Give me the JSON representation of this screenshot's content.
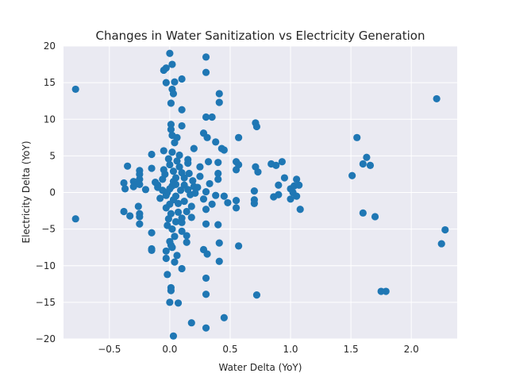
{
  "chart_data": {
    "type": "scatter",
    "title": "Changes in Water Sanitization vs Electricity Generation",
    "xlabel": "Water Delta (YoY)",
    "ylabel": "Electricity Delta (YoY)",
    "xlim": [
      -0.88,
      2.38
    ],
    "ylim": [
      -20,
      20
    ],
    "xticks": [
      -0.5,
      0.0,
      0.5,
      1.0,
      1.5,
      2.0
    ],
    "xtick_labels": [
      "−0.5",
      "0.0",
      "0.5",
      "1.0",
      "1.5",
      "2.0"
    ],
    "yticks": [
      -20,
      -15,
      -10,
      -5,
      0,
      5,
      10,
      15,
      20
    ],
    "ytick_labels": [
      "−20",
      "−15",
      "−10",
      "−5",
      "0",
      "5",
      "10",
      "15",
      "20"
    ],
    "grid": true,
    "colors": {
      "marker": "#1f77b4",
      "plot_bg": "#eaeaf2",
      "grid": "#ffffff"
    },
    "points": [
      [
        -0.78,
        14.1
      ],
      [
        -0.78,
        -3.6
      ],
      [
        2.21,
        12.8
      ],
      [
        2.28,
        -5.1
      ],
      [
        2.25,
        -7.0
      ],
      [
        1.55,
        7.5
      ],
      [
        1.6,
        3.9
      ],
      [
        1.63,
        4.8
      ],
      [
        1.66,
        3.7
      ],
      [
        1.51,
        2.3
      ],
      [
        1.6,
        -2.8
      ],
      [
        1.7,
        -3.3
      ],
      [
        1.75,
        -13.5
      ],
      [
        1.79,
        -13.5
      ],
      [
        -0.05,
        16.7
      ],
      [
        0.0,
        19.0
      ],
      [
        0.02,
        17.5
      ],
      [
        -0.03,
        17.0
      ],
      [
        -0.03,
        15.0
      ],
      [
        0.04,
        15.1
      ],
      [
        0.1,
        15.5
      ],
      [
        0.3,
        18.5
      ],
      [
        0.3,
        16.4
      ],
      [
        0.41,
        13.5
      ],
      [
        0.41,
        12.3
      ],
      [
        0.02,
        14.1
      ],
      [
        0.03,
        13.5
      ],
      [
        0.01,
        12.2
      ],
      [
        0.1,
        11.3
      ],
      [
        0.3,
        10.3
      ],
      [
        0.35,
        10.3
      ],
      [
        0.71,
        9.5
      ],
      [
        0.72,
        9.0
      ],
      [
        0.01,
        9.3
      ],
      [
        0.01,
        8.6
      ],
      [
        0.02,
        7.8
      ],
      [
        0.1,
        9.1
      ],
      [
        0.28,
        8.1
      ],
      [
        0.31,
        7.5
      ],
      [
        0.38,
        6.9
      ],
      [
        0.57,
        7.5
      ],
      [
        0.43,
        6.0
      ],
      [
        0.45,
        5.8
      ],
      [
        0.2,
        6.0
      ],
      [
        -0.15,
        5.2
      ],
      [
        -0.05,
        5.7
      ],
      [
        -0.35,
        3.6
      ],
      [
        -0.25,
        3.0
      ],
      [
        -0.25,
        2.5
      ],
      [
        -0.25,
        1.8
      ],
      [
        -0.3,
        1.5
      ],
      [
        -0.38,
        1.3
      ],
      [
        -0.37,
        0.5
      ],
      [
        -0.3,
        0.8
      ],
      [
        -0.25,
        1.1
      ],
      [
        -0.15,
        3.3
      ],
      [
        -0.1,
        1.0
      ],
      [
        -0.06,
        0.3
      ],
      [
        0.55,
        4.2
      ],
      [
        0.55,
        3.1
      ],
      [
        0.57,
        3.8
      ],
      [
        0.71,
        3.5
      ],
      [
        0.73,
        2.8
      ],
      [
        0.84,
        3.9
      ],
      [
        0.88,
        3.7
      ],
      [
        0.9,
        1.0
      ],
      [
        0.93,
        4.2
      ],
      [
        0.95,
        2.0
      ],
      [
        1.0,
        0.5
      ],
      [
        1.03,
        0.9
      ],
      [
        1.05,
        1.8
      ],
      [
        1.07,
        1.0
      ],
      [
        1.02,
        0.0
      ],
      [
        1.0,
        -0.9
      ],
      [
        1.05,
        -0.5
      ],
      [
        1.08,
        -2.3
      ],
      [
        0.86,
        -0.6
      ],
      [
        0.9,
        -0.3
      ],
      [
        0.7,
        0.2
      ],
      [
        0.7,
        -1.0
      ],
      [
        0.7,
        -1.5
      ],
      [
        0.55,
        -1.1
      ],
      [
        0.55,
        -2.1
      ],
      [
        0.57,
        -7.3
      ],
      [
        0.72,
        -14.0
      ],
      [
        0.45,
        -17.1
      ],
      [
        0.3,
        -18.5
      ],
      [
        0.18,
        -17.8
      ],
      [
        0.03,
        -19.6
      ],
      [
        0.07,
        -15.1
      ],
      [
        0.0,
        -15.0
      ],
      [
        0.01,
        -13.0
      ],
      [
        0.01,
        -13.4
      ],
      [
        0.3,
        -13.9
      ],
      [
        0.3,
        -11.7
      ],
      [
        -0.02,
        -11.2
      ],
      [
        0.1,
        -10.4
      ],
      [
        0.28,
        -7.8
      ],
      [
        0.31,
        -8.4
      ],
      [
        0.41,
        -9.4
      ],
      [
        0.41,
        -6.9
      ],
      [
        0.04,
        -9.5
      ],
      [
        -0.03,
        -9.0
      ],
      [
        -0.03,
        -8.0
      ],
      [
        0.01,
        -7.2
      ],
      [
        -0.15,
        -7.7
      ],
      [
        -0.15,
        -7.9
      ],
      [
        -0.15,
        -5.5
      ],
      [
        -0.25,
        -4.3
      ],
      [
        -0.25,
        -3.3
      ],
      [
        -0.25,
        -2.9
      ],
      [
        -0.38,
        -2.6
      ],
      [
        -0.33,
        -3.2
      ],
      [
        -0.26,
        -1.9
      ],
      [
        0.14,
        -6.8
      ],
      [
        0.14,
        -5.9
      ],
      [
        0.1,
        -5.3
      ],
      [
        0.18,
        -3.4
      ],
      [
        0.3,
        -4.3
      ],
      [
        0.4,
        -4.4
      ],
      [
        0.3,
        -2.3
      ],
      [
        0.48,
        -1.4
      ],
      [
        0.45,
        -0.5
      ],
      [
        0.2,
        0.8
      ],
      [
        0.25,
        2.2
      ],
      [
        0.4,
        2.6
      ],
      [
        0.4,
        1.8
      ],
      [
        0.4,
        4.1
      ],
      [
        0.32,
        4.2
      ],
      [
        0.25,
        3.5
      ],
      [
        0.15,
        4.5
      ],
      [
        0.15,
        4.0
      ],
      [
        0.06,
        4.3
      ],
      [
        0.08,
        3.5
      ],
      [
        0.1,
        2.7
      ],
      [
        0.05,
        2.0
      ],
      [
        0.03,
        1.5
      ],
      [
        0.02,
        0.9
      ],
      [
        0.0,
        0.5
      ],
      [
        -0.02,
        0.0
      ],
      [
        0.05,
        -0.5
      ],
      [
        0.03,
        -1.0
      ],
      [
        0.0,
        -1.6
      ],
      [
        -0.03,
        -2.1
      ],
      [
        0.07,
        -2.7
      ],
      [
        0.1,
        -3.5
      ],
      [
        0.05,
        -4.0
      ],
      [
        -0.02,
        -4.5
      ],
      [
        0.04,
        -6.0
      ],
      [
        0.02,
        -5.0
      ],
      [
        0.12,
        1.0
      ],
      [
        0.15,
        0.4
      ],
      [
        0.17,
        -0.3
      ],
      [
        0.12,
        -1.2
      ],
      [
        0.18,
        -1.9
      ],
      [
        0.21,
        -0.1
      ],
      [
        0.23,
        0.7
      ],
      [
        -0.04,
        2.5
      ],
      [
        -0.05,
        3.1
      ],
      [
        0.0,
        3.8
      ],
      [
        -0.01,
        4.6
      ],
      [
        0.02,
        5.5
      ],
      [
        0.08,
        5.1
      ],
      [
        0.04,
        6.8
      ],
      [
        0.06,
        7.5
      ],
      [
        -0.08,
        -0.8
      ],
      [
        -0.1,
        0.7
      ],
      [
        -0.12,
        1.4
      ],
      [
        -0.2,
        0.4
      ],
      [
        0.28,
        -0.9
      ],
      [
        0.3,
        0.1
      ],
      [
        0.33,
        1.2
      ],
      [
        0.35,
        -1.6
      ],
      [
        0.38,
        -0.4
      ],
      [
        0.05,
        1.1
      ],
      [
        0.07,
        -1.5
      ],
      [
        0.1,
        -4.1
      ],
      [
        0.14,
        -2.6
      ],
      [
        0.01,
        -2.9
      ],
      [
        -0.01,
        -3.6
      ],
      [
        0.03,
        2.9
      ],
      [
        0.09,
        0.3
      ],
      [
        0.12,
        2.0
      ],
      [
        0.16,
        2.6
      ],
      [
        0.19,
        1.6
      ],
      [
        -0.06,
        1.8
      ],
      [
        -0.03,
        -0.4
      ],
      [
        0.0,
        -6.7
      ],
      [
        0.02,
        -7.5
      ],
      [
        0.06,
        -8.6
      ]
    ]
  }
}
